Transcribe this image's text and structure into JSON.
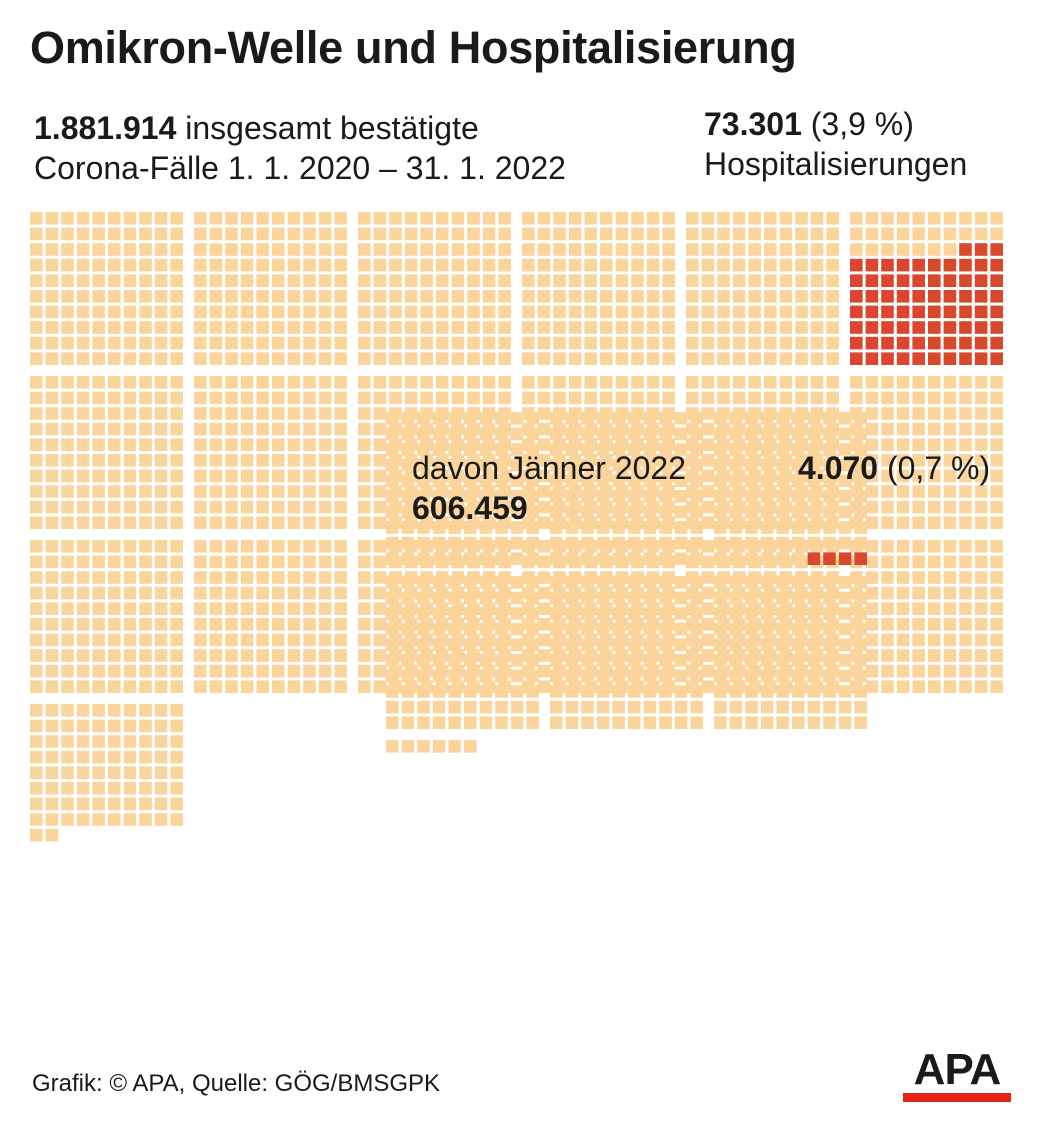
{
  "title": "Omikron-Welle und Hospitalisierung",
  "total": {
    "value_label": "1.881.914",
    "text_line1": "insgesamt bestätigte",
    "text_line2": "Corona-Fälle 1. 1. 2020 – 31. 1. 2022"
  },
  "hospitalized": {
    "value_label": "73.301",
    "percent_label": "(3,9 %)",
    "text": "Hospitalisierungen"
  },
  "january": {
    "text": "davon Jänner 2022",
    "value_label": "606.459"
  },
  "january_hospitalized": {
    "value_label": "4.070",
    "percent_label": "(0,7 %)"
  },
  "source": "Grafik: © APA, Quelle: GÖG/BMSGPK",
  "logo": {
    "text": "APA"
  },
  "colors": {
    "cases": "#fad49a",
    "hospitalized": "#d9472c",
    "text": "#1a1a1a",
    "logo_bar": "#e42312"
  },
  "chart_data": [
    {
      "type": "waffle",
      "name": "total",
      "unit_cases_per_square": 1000,
      "total_cases": 1881914,
      "hospitalized_cases": 73301,
      "hospitalized_percent": 3.9,
      "squares_total": 1882,
      "squares_hospitalized": 73
    },
    {
      "type": "waffle",
      "name": "january",
      "unit_cases_per_square": 1000,
      "total_cases": 606459,
      "hospitalized_cases": 4070,
      "hospitalized_percent": 0.7,
      "squares_total": 606,
      "squares_hospitalized": 4
    }
  ]
}
